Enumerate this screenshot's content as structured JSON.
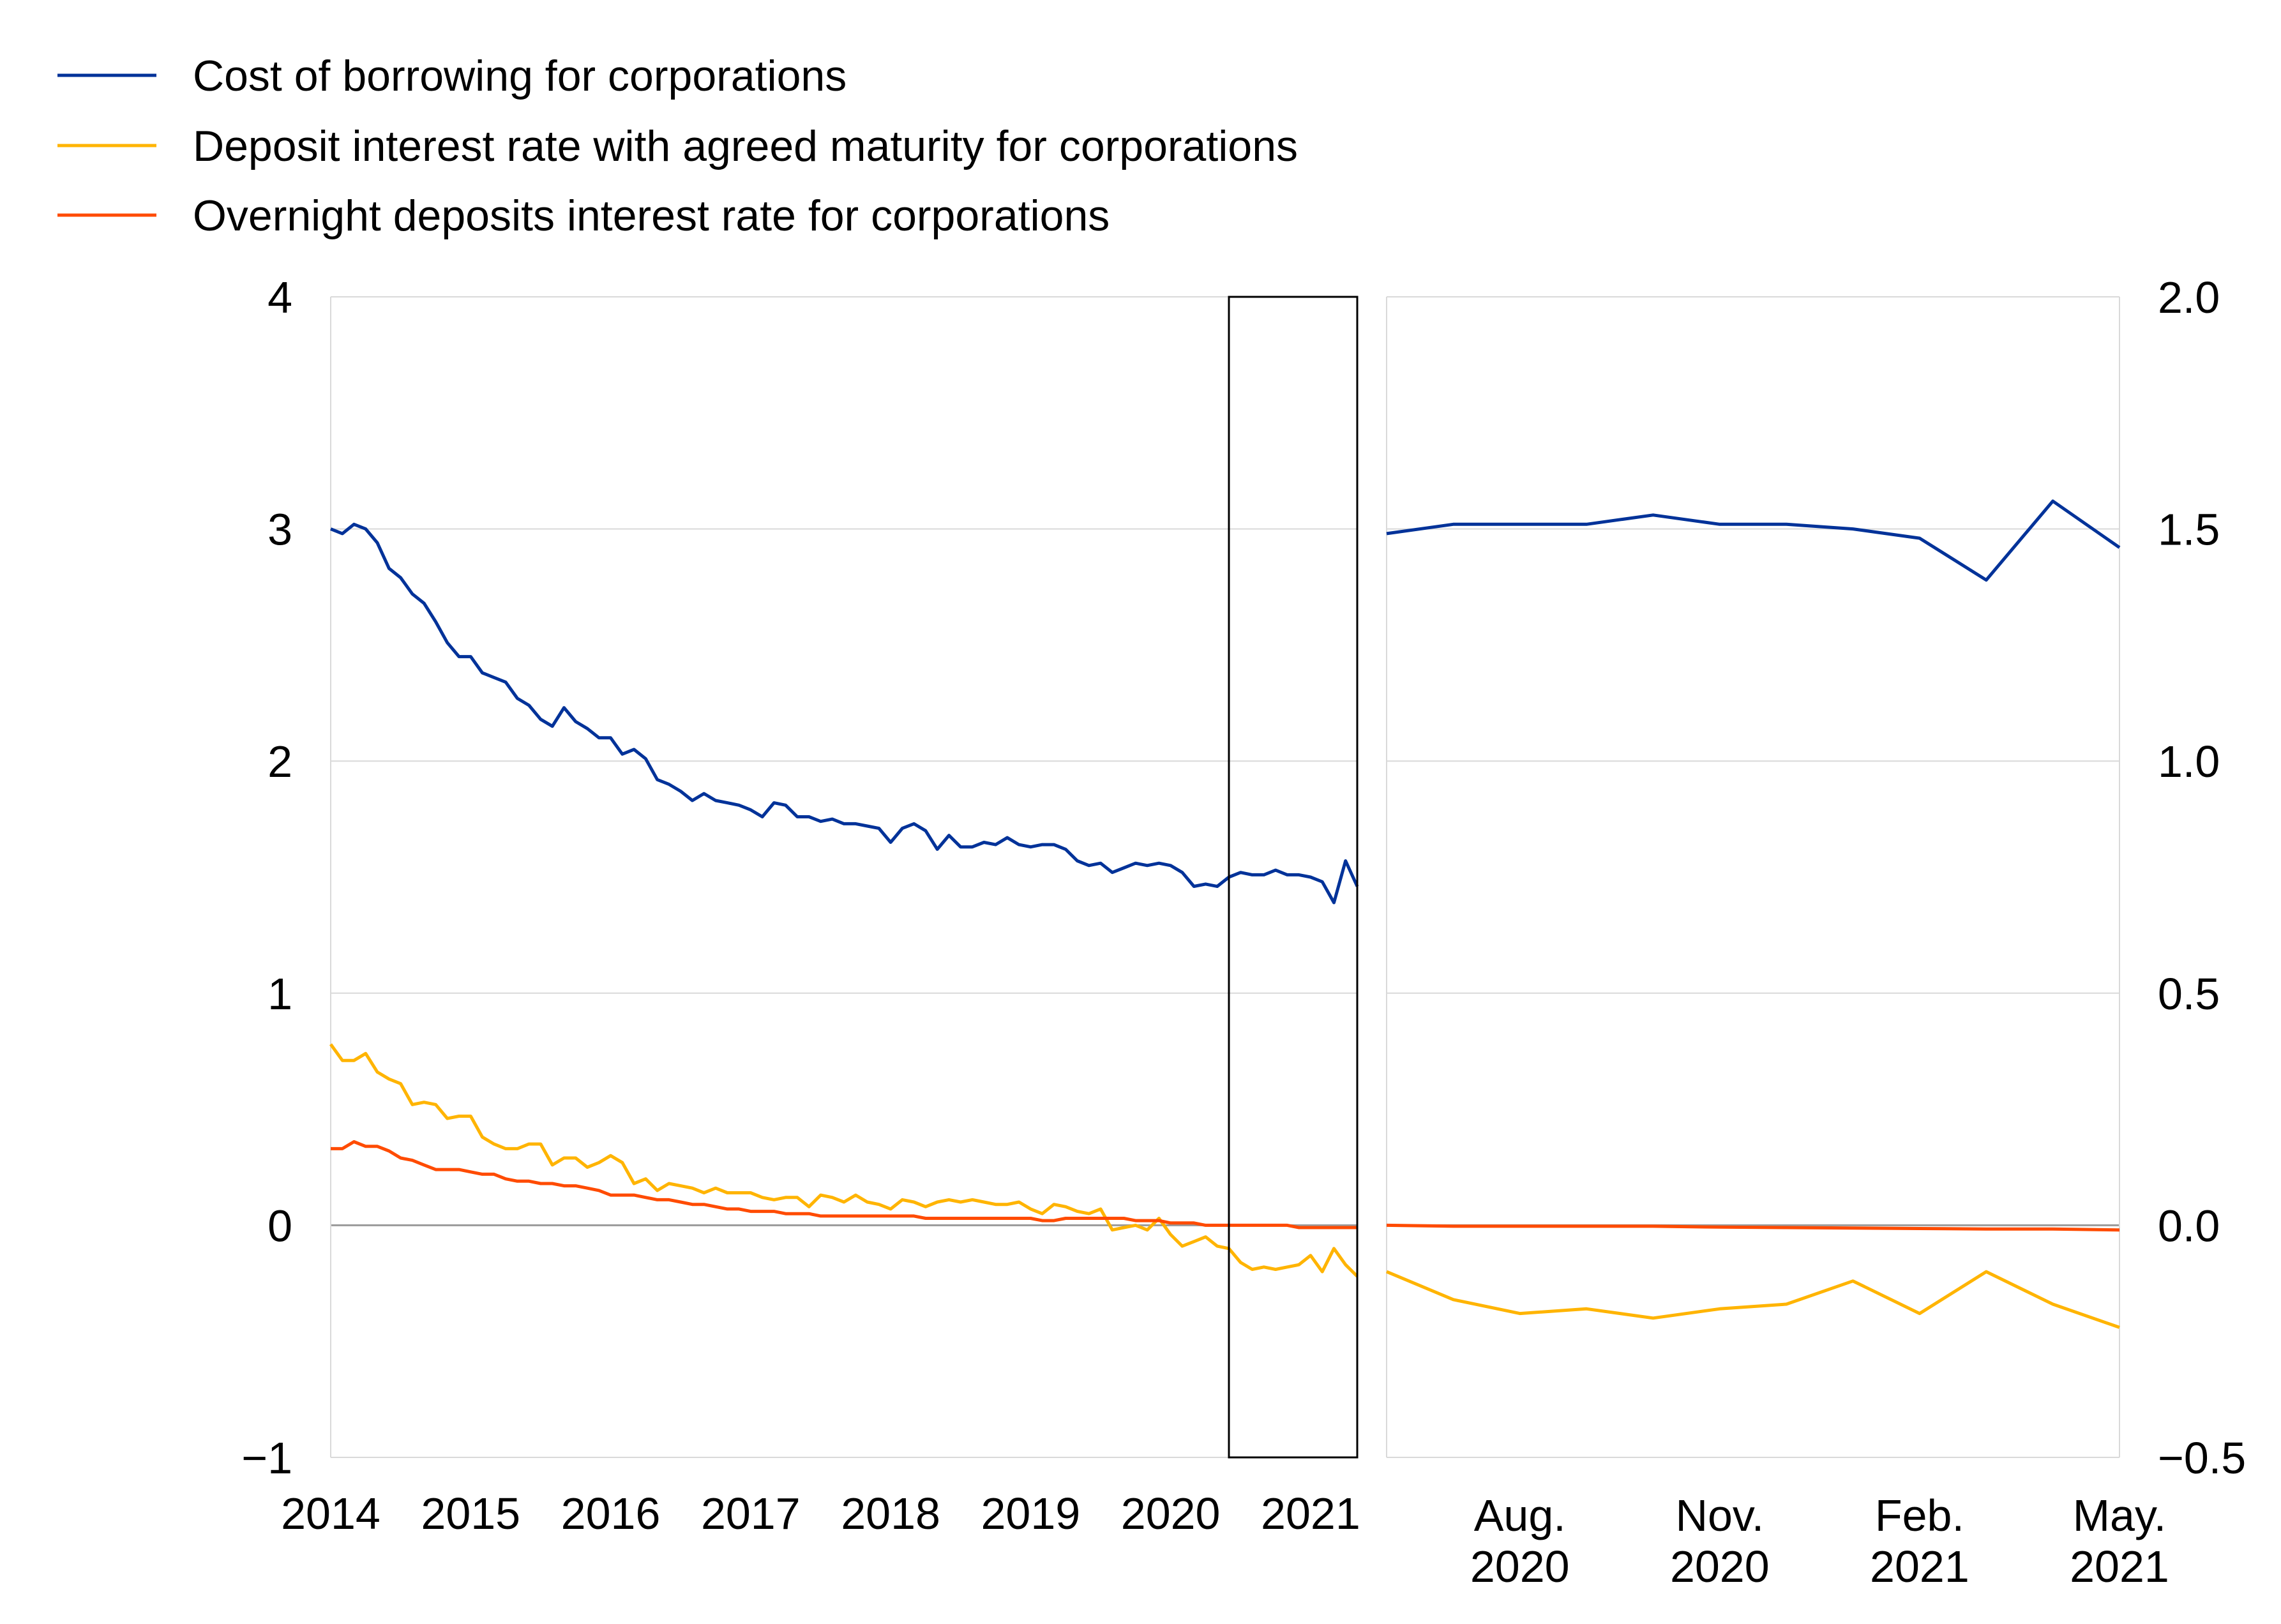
{
  "chart_data": [
    {
      "type": "line",
      "title": "",
      "xlabel": "",
      "ylabel": "",
      "ylim": [
        -1,
        4
      ],
      "yticks": [
        "4",
        "3",
        "2",
        "1",
        "0",
        "−1"
      ],
      "xticks": [
        "2014",
        "2015",
        "2016",
        "2017",
        "2018",
        "2019",
        "2020",
        "2021"
      ],
      "xrange": [
        "2014-01",
        "2021-05"
      ],
      "grid": "horizontal",
      "highlight_box": {
        "from": "2020-06",
        "to": "2021-05"
      },
      "series": [
        {
          "name": "Cost of borrowing for corporations",
          "color": "#003299",
          "start": "2014-01",
          "values": [
            3.0,
            2.98,
            3.02,
            3.0,
            2.94,
            2.83,
            2.79,
            2.72,
            2.68,
            2.6,
            2.51,
            2.45,
            2.45,
            2.38,
            2.36,
            2.34,
            2.27,
            2.24,
            2.18,
            2.15,
            2.23,
            2.17,
            2.14,
            2.1,
            2.1,
            2.03,
            2.05,
            2.01,
            1.92,
            1.9,
            1.87,
            1.83,
            1.86,
            1.83,
            1.82,
            1.81,
            1.79,
            1.76,
            1.82,
            1.81,
            1.76,
            1.76,
            1.74,
            1.75,
            1.73,
            1.73,
            1.72,
            1.71,
            1.65,
            1.71,
            1.73,
            1.7,
            1.62,
            1.68,
            1.63,
            1.63,
            1.65,
            1.64,
            1.67,
            1.64,
            1.63,
            1.64,
            1.64,
            1.62,
            1.57,
            1.55,
            1.56,
            1.52,
            1.54,
            1.56,
            1.55,
            1.56,
            1.55,
            1.52,
            1.46,
            1.47,
            1.46,
            1.5,
            1.52,
            1.51,
            1.51,
            1.53,
            1.51,
            1.51,
            1.5,
            1.48,
            1.39,
            1.57,
            1.46
          ]
        },
        {
          "name": "Deposit interest rate with agreed maturity for corporations",
          "color": "#FFB400",
          "start": "2014-01",
          "values": [
            0.78,
            0.71,
            0.71,
            0.74,
            0.66,
            0.63,
            0.61,
            0.52,
            0.53,
            0.52,
            0.46,
            0.47,
            0.47,
            0.38,
            0.35,
            0.33,
            0.33,
            0.35,
            0.35,
            0.26,
            0.29,
            0.29,
            0.25,
            0.27,
            0.3,
            0.27,
            0.18,
            0.2,
            0.15,
            0.18,
            0.17,
            0.16,
            0.14,
            0.16,
            0.14,
            0.14,
            0.14,
            0.12,
            0.11,
            0.12,
            0.12,
            0.08,
            0.13,
            0.12,
            0.1,
            0.13,
            0.1,
            0.09,
            0.07,
            0.11,
            0.1,
            0.08,
            0.1,
            0.11,
            0.1,
            0.11,
            0.1,
            0.09,
            0.09,
            0.1,
            0.07,
            0.05,
            0.09,
            0.08,
            0.06,
            0.05,
            0.07,
            -0.02,
            -0.01,
            0.0,
            -0.02,
            0.03,
            -0.04,
            -0.09,
            -0.07,
            -0.05,
            -0.09,
            -0.1,
            -0.16,
            -0.19,
            -0.18,
            -0.19,
            -0.18,
            -0.17,
            -0.13,
            -0.2,
            -0.1,
            -0.17,
            -0.22
          ]
        },
        {
          "name": "Overnight deposits interest rate for corporations",
          "color": "#FF4B00",
          "start": "2014-01",
          "values": [
            0.33,
            0.33,
            0.36,
            0.34,
            0.34,
            0.32,
            0.29,
            0.28,
            0.26,
            0.24,
            0.24,
            0.24,
            0.23,
            0.22,
            0.22,
            0.2,
            0.19,
            0.19,
            0.18,
            0.18,
            0.17,
            0.17,
            0.16,
            0.15,
            0.13,
            0.13,
            0.13,
            0.12,
            0.11,
            0.11,
            0.1,
            0.09,
            0.09,
            0.08,
            0.07,
            0.07,
            0.06,
            0.06,
            0.06,
            0.05,
            0.05,
            0.05,
            0.04,
            0.04,
            0.04,
            0.04,
            0.04,
            0.04,
            0.04,
            0.04,
            0.04,
            0.03,
            0.03,
            0.03,
            0.03,
            0.03,
            0.03,
            0.03,
            0.03,
            0.03,
            0.03,
            0.02,
            0.02,
            0.03,
            0.03,
            0.03,
            0.03,
            0.03,
            0.03,
            0.02,
            0.02,
            0.02,
            0.01,
            0.01,
            0.01,
            0.0,
            0.0,
            0.0,
            0.0,
            0.0,
            0.0,
            0.0,
            0.0,
            -0.01,
            -0.01,
            -0.01,
            -0.01,
            -0.01,
            -0.01
          ]
        }
      ]
    },
    {
      "type": "line",
      "title": "",
      "xlabel": "",
      "ylabel": "",
      "ylim": [
        -0.5,
        2.0
      ],
      "yticks": [
        "2.0",
        "1.5",
        "1.0",
        "0.5",
        "0.0",
        "−0.5"
      ],
      "xticks": [
        {
          "line1": "Aug.",
          "line2": "2020"
        },
        {
          "line1": "Nov.",
          "line2": "2020"
        },
        {
          "line1": "Feb.",
          "line2": "2021"
        },
        {
          "line1": "May.",
          "line2": "2021"
        }
      ],
      "xrange": [
        "2020-06",
        "2021-05"
      ],
      "grid": "horizontal",
      "series": [
        {
          "name": "Cost of borrowing for corporations",
          "color": "#003299",
          "x": [
            "2020-06",
            "2020-07",
            "2020-08",
            "2020-09",
            "2020-10",
            "2020-11",
            "2020-12",
            "2021-01",
            "2021-02",
            "2021-03",
            "2021-04",
            "2021-05"
          ],
          "values": [
            1.49,
            1.51,
            1.51,
            1.51,
            1.53,
            1.51,
            1.51,
            1.5,
            1.48,
            1.39,
            1.56,
            1.46
          ]
        },
        {
          "name": "Deposit interest rate with agreed maturity for corporations",
          "color": "#FFB400",
          "x": [
            "2020-06",
            "2020-07",
            "2020-08",
            "2020-09",
            "2020-10",
            "2020-11",
            "2020-12",
            "2021-01",
            "2021-02",
            "2021-03",
            "2021-04",
            "2021-05"
          ],
          "values": [
            -0.1,
            -0.16,
            -0.19,
            -0.18,
            -0.2,
            -0.18,
            -0.17,
            -0.12,
            -0.19,
            -0.1,
            -0.17,
            -0.22
          ]
        },
        {
          "name": "Overnight deposits interest rate for corporations",
          "color": "#FF4B00",
          "x": [
            "2020-06",
            "2020-07",
            "2020-08",
            "2020-09",
            "2020-10",
            "2020-11",
            "2020-12",
            "2021-01",
            "2021-02",
            "2021-03",
            "2021-04",
            "2021-05"
          ],
          "values": [
            0.0,
            -0.002,
            -0.002,
            -0.002,
            -0.002,
            -0.004,
            -0.005,
            -0.006,
            -0.007,
            -0.008,
            -0.008,
            -0.01
          ]
        }
      ]
    }
  ]
}
